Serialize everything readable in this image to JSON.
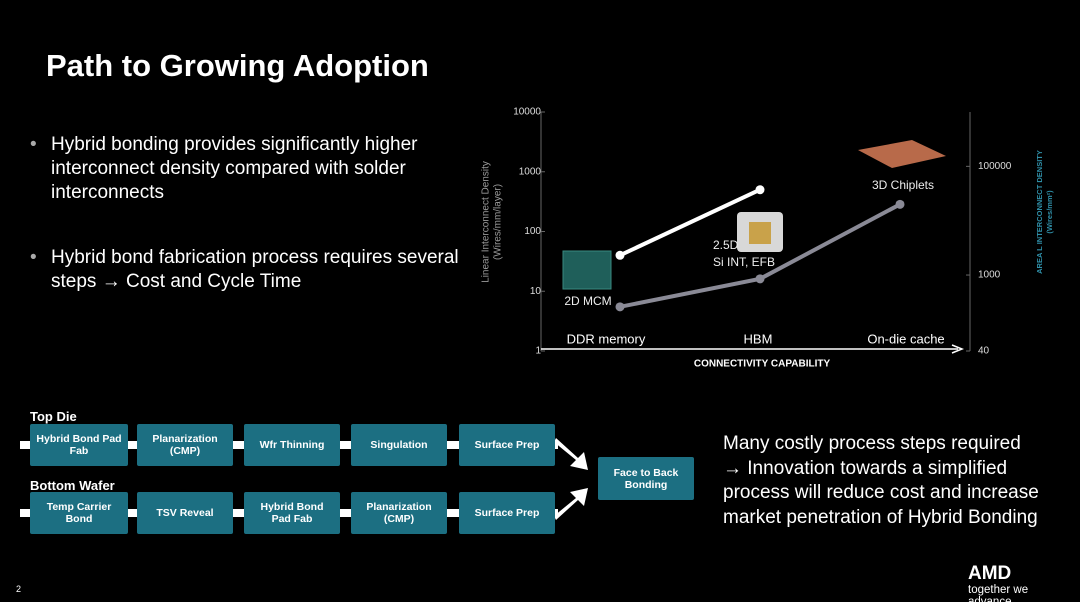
{
  "title": "Path to Growing Adoption",
  "bullets": [
    "Hybrid bonding provides significantly higher interconnect density compared with solder interconnects",
    "Hybrid bond fabrication process requires several steps → Cost and Cycle Time"
  ],
  "chart_data": {
    "type": "line",
    "log_scale": true,
    "categories": [
      "DDR memory",
      "HBM",
      "On-die cache"
    ],
    "x_label": "CONNECTIVITY CAPABILITY",
    "y_label": [
      "Linear Interconnect Density",
      "(Wires/mm/layer)"
    ],
    "y2_label": [
      "AREA L INTERCONNECT DENSITY",
      "(Wires/mm²)"
    ],
    "ylim": [
      1,
      10000
    ],
    "yticks": [
      1,
      10,
      100,
      1000,
      10000
    ],
    "y2lim": [
      40,
      1000000
    ],
    "y2ticks": [
      40,
      1000,
      100000
    ],
    "series": [
      {
        "color": "#ffffff",
        "values": [
          40,
          500,
          null
        ]
      },
      {
        "color": "#8a8a96",
        "axis": "y2",
        "values": [
          260,
          850,
          20000
        ]
      }
    ],
    "annotations": [
      "2D MCM",
      "2.5D",
      "Si INT, EFB",
      "3D Chiplets"
    ]
  },
  "flow": {
    "top_label": "Top Die",
    "bottom_label": "Bottom Wafer",
    "top_steps": [
      "Hybrid Bond Pad Fab",
      "Planarization (CMP)",
      "Wfr Thinning",
      "Singulation",
      "Surface Prep"
    ],
    "bottom_steps": [
      "Temp Carrier Bond",
      "TSV Reveal",
      "Hybrid Bond Pad Fab",
      "Planarization (CMP)",
      "Surface Prep"
    ],
    "final_step": "Face to Back Bonding"
  },
  "callout": [
    "Many costly process steps required",
    "→ Innovation towards a simplified process will reduce cost and increase market penetration of Hybrid Bonding"
  ],
  "footer": {
    "page": "2",
    "logo": "AMD",
    "tagline": "together we advance_"
  }
}
